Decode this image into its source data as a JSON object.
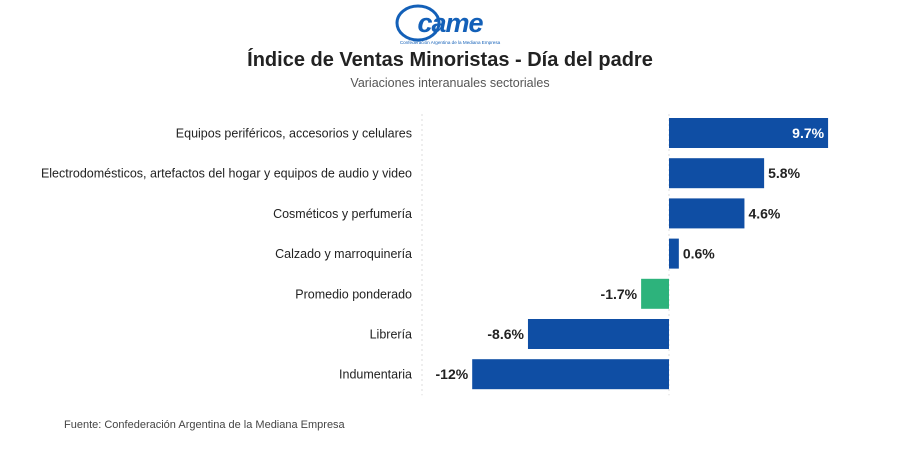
{
  "logo": {
    "wordmark": "came",
    "tagline": "Confederación Argentina de la Mediana Empresa",
    "color": "#1360b8"
  },
  "chart_data": {
    "type": "bar",
    "orientation": "horizontal",
    "title": "Índice de Ventas Minoristas - Día del padre",
    "subtitle": "Variaciones interanuales sectoriales",
    "categories": [
      "Equipos periféricos, accesorios y celulares",
      "Electrodomésticos, artefactos del hogar y equipos de audio y video",
      "Cosméticos y perfumería",
      "Calzado y marroquinería",
      "Promedio ponderado",
      "Librería",
      "Indumentaria"
    ],
    "values": [
      9.7,
      5.8,
      4.6,
      0.6,
      -1.7,
      -8.6,
      -12
    ],
    "labels": [
      "9.7%",
      "5.8%",
      "4.6%",
      "0.6%",
      "-1.7%",
      "-8.6%",
      "-12%"
    ],
    "colors": [
      "#0f4ea4",
      "#0f4ea4",
      "#0f4ea4",
      "#0f4ea4",
      "#2db37c",
      "#0f4ea4",
      "#0f4ea4"
    ],
    "xlim": [
      -15,
      10
    ],
    "unit": "%"
  },
  "source": "Fuente: Confederación Argentina de la Mediana Empresa"
}
